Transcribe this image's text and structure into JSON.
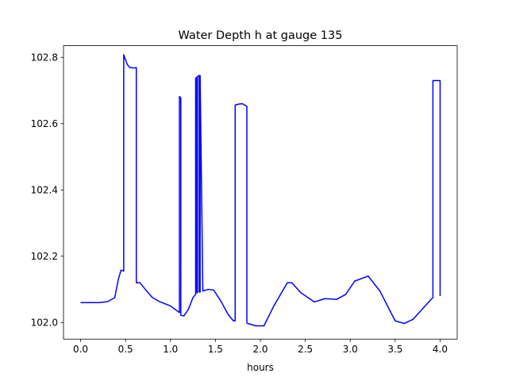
{
  "chart_data": {
    "type": "line",
    "title": "Water Depth h at gauge 135",
    "xlabel": "hours",
    "ylabel": "",
    "xlim": [
      -0.19,
      4.19
    ],
    "ylim": [
      101.95,
      102.835
    ],
    "xticks": [
      0.0,
      0.5,
      1.0,
      1.5,
      2.0,
      2.5,
      3.0,
      3.5,
      4.0
    ],
    "xtick_labels": [
      "0.0",
      "0.5",
      "1.0",
      "1.5",
      "2.0",
      "2.5",
      "3.0",
      "3.5",
      "4.0"
    ],
    "yticks": [
      102.0,
      102.2,
      102.4,
      102.6,
      102.8
    ],
    "ytick_labels": [
      "102.0",
      "102.2",
      "102.4",
      "102.6",
      "102.8"
    ],
    "grid": false,
    "color": "#0000ff",
    "series": [
      {
        "x": [
          0.0,
          0.1,
          0.2,
          0.3,
          0.38,
          0.42,
          0.45,
          0.48,
          0.48,
          0.49,
          0.52,
          0.55,
          0.6,
          0.62,
          0.62,
          0.66,
          0.72,
          0.8,
          0.88,
          1.0,
          1.1,
          1.1,
          1.115,
          1.115,
          1.15,
          1.2,
          1.25,
          1.28,
          1.28,
          1.29,
          1.29,
          1.3,
          1.3,
          1.32,
          1.32,
          1.33,
          1.33,
          1.36,
          1.42,
          1.48,
          1.56,
          1.64,
          1.7,
          1.72,
          1.72,
          1.76,
          1.8,
          1.85,
          1.85,
          1.95,
          2.04,
          2.15,
          2.3,
          2.35,
          2.45,
          2.6,
          2.72,
          2.85,
          2.95,
          3.05,
          3.2,
          3.33,
          3.5,
          3.6,
          3.7,
          3.8,
          3.9,
          3.92,
          3.92,
          4.0,
          4.0
        ],
        "y": [
          102.06,
          102.06,
          102.06,
          102.063,
          102.075,
          102.13,
          102.158,
          102.155,
          102.808,
          102.8,
          102.778,
          102.769,
          102.768,
          102.769,
          102.12,
          102.12,
          102.1,
          102.075,
          102.063,
          102.05,
          102.03,
          102.682,
          102.677,
          102.022,
          102.02,
          102.04,
          102.075,
          102.085,
          102.735,
          102.74,
          102.09,
          102.09,
          102.742,
          102.745,
          102.092,
          102.092,
          102.745,
          102.095,
          102.1,
          102.098,
          102.065,
          102.025,
          102.005,
          102.005,
          102.656,
          102.659,
          102.66,
          102.652,
          101.998,
          101.99,
          101.99,
          102.05,
          102.12,
          102.12,
          102.09,
          102.062,
          102.072,
          102.07,
          102.085,
          102.125,
          102.14,
          102.095,
          102.005,
          101.997,
          102.01,
          102.04,
          102.07,
          102.075,
          102.73,
          102.73,
          102.08
        ]
      }
    ]
  }
}
